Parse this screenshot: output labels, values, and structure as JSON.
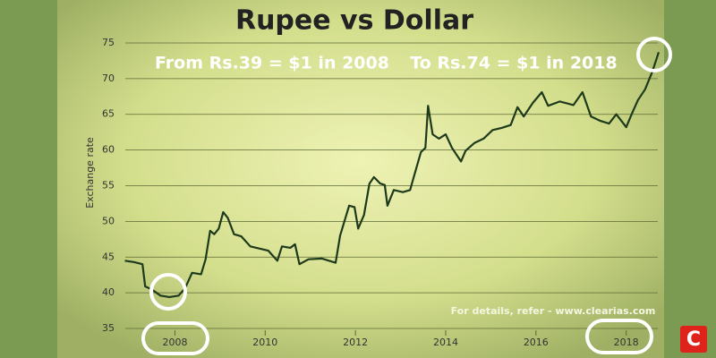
{
  "chart_data": {
    "type": "line",
    "title": "Rupee vs Dollar",
    "subtitle_left": "From Rs.39 = $1 in 2008",
    "subtitle_right": "To Rs.74 = $1 in 2018",
    "ylabel": "Exchange rate",
    "footer": "For details, refer - www.clearias.com",
    "logo": "C",
    "color": "#1e3a1c",
    "grid": true,
    "xlim": [
      2006.9,
      2018.8
    ],
    "ylim": [
      34,
      76
    ],
    "xticks": [
      2008,
      2010,
      2012,
      2014,
      2016,
      2018
    ],
    "yticks": [
      35,
      40,
      45,
      50,
      55,
      60,
      65,
      70,
      75
    ],
    "x": [
      2006.89,
      2007.09,
      2007.28,
      2007.34,
      2007.48,
      2007.68,
      2007.88,
      2008.08,
      2008.22,
      2008.38,
      2008.58,
      2008.68,
      2008.78,
      2008.87,
      2008.97,
      2009.07,
      2009.17,
      2009.31,
      2009.47,
      2009.67,
      2009.87,
      2010.07,
      2010.27,
      2010.37,
      2010.56,
      2010.66,
      2010.76,
      2010.96,
      2011.26,
      2011.56,
      2011.66,
      2011.86,
      2011.98,
      2012.06,
      2012.19,
      2012.31,
      2012.41,
      2012.55,
      2012.65,
      2012.71,
      2012.85,
      2013.05,
      2013.21,
      2013.31,
      2013.45,
      2013.55,
      2013.61,
      2013.71,
      2013.85,
      2014.0,
      2014.14,
      2014.34,
      2014.44,
      2014.64,
      2014.84,
      2015.04,
      2015.24,
      2015.44,
      2015.59,
      2015.73,
      2015.93,
      2016.13,
      2016.27,
      2016.53,
      2016.83,
      2017.03,
      2017.22,
      2017.42,
      2017.62,
      2017.78,
      2018.0,
      2018.12,
      2018.26,
      2018.42,
      2018.58,
      2018.72
    ],
    "values": [
      44.5,
      44.3,
      44.0,
      40.9,
      40.5,
      39.6,
      39.4,
      39.6,
      40.6,
      42.8,
      42.6,
      44.7,
      48.7,
      48.2,
      49.0,
      51.3,
      50.5,
      48.2,
      47.9,
      46.5,
      46.2,
      45.9,
      44.5,
      46.5,
      46.3,
      46.8,
      44.0,
      44.7,
      44.8,
      44.2,
      48.0,
      52.2,
      52.0,
      49.0,
      50.9,
      55.3,
      56.2,
      55.3,
      55.1,
      52.2,
      54.4,
      54.1,
      54.4,
      56.6,
      59.7,
      60.3,
      66.2,
      62.2,
      61.6,
      62.2,
      60.3,
      58.4,
      59.9,
      61.0,
      61.6,
      62.8,
      63.1,
      63.5,
      66.0,
      64.7,
      66.6,
      68.1,
      66.2,
      66.8,
      66.3,
      68.1,
      64.7,
      64.1,
      63.7,
      65.0,
      63.2,
      65.0,
      67.0,
      68.5,
      71.0,
      73.7
    ]
  }
}
